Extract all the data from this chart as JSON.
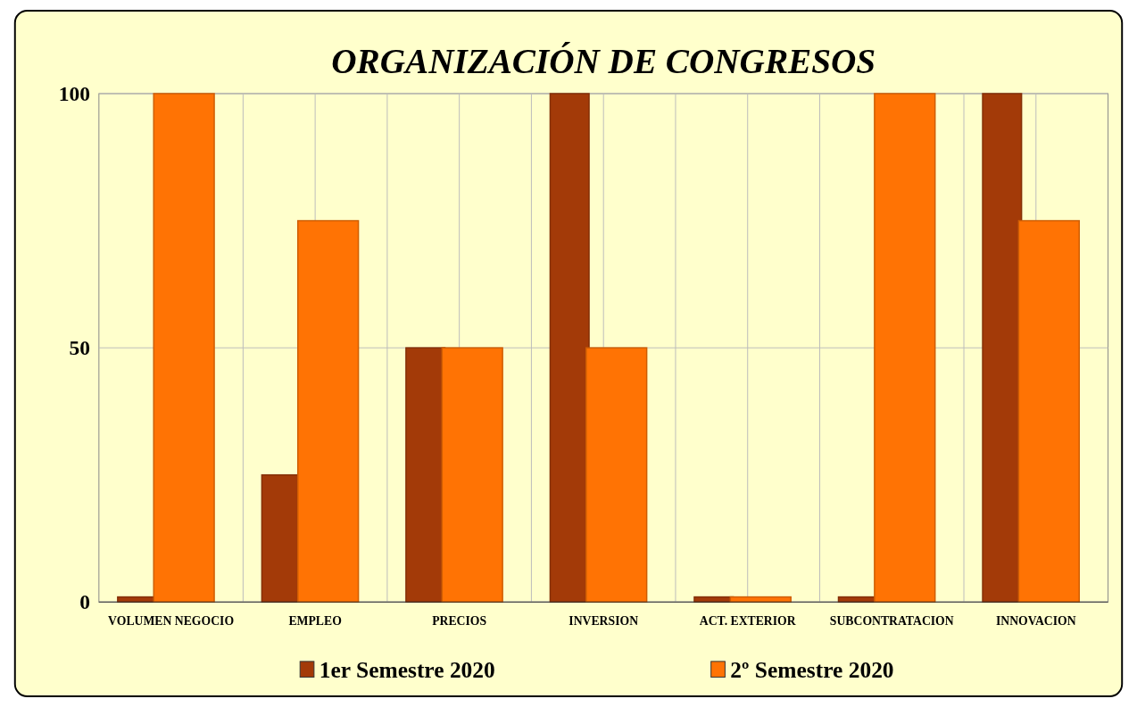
{
  "chart_data": {
    "type": "bar",
    "title": "ORGANIZACIÓN DE CONGRESOS",
    "categories": [
      "VOLUMEN NEGOCIO",
      "EMPLEO",
      "PRECIOS",
      "INVERSION",
      "ACT. EXTERIOR",
      "SUBCONTRATACION",
      "INNOVACION"
    ],
    "series": [
      {
        "name": "1er Semestre 2020",
        "color": "#a33a08",
        "values": [
          1,
          25,
          50,
          100,
          1,
          1,
          100
        ]
      },
      {
        "name": "2º Semestre 2020",
        "color": "#ff7304",
        "values": [
          100,
          75,
          50,
          50,
          1,
          100,
          75
        ]
      }
    ],
    "ylim": [
      0,
      100
    ],
    "yticks": [
      0,
      50,
      100
    ],
    "grid": true,
    "legend": "bottom"
  }
}
